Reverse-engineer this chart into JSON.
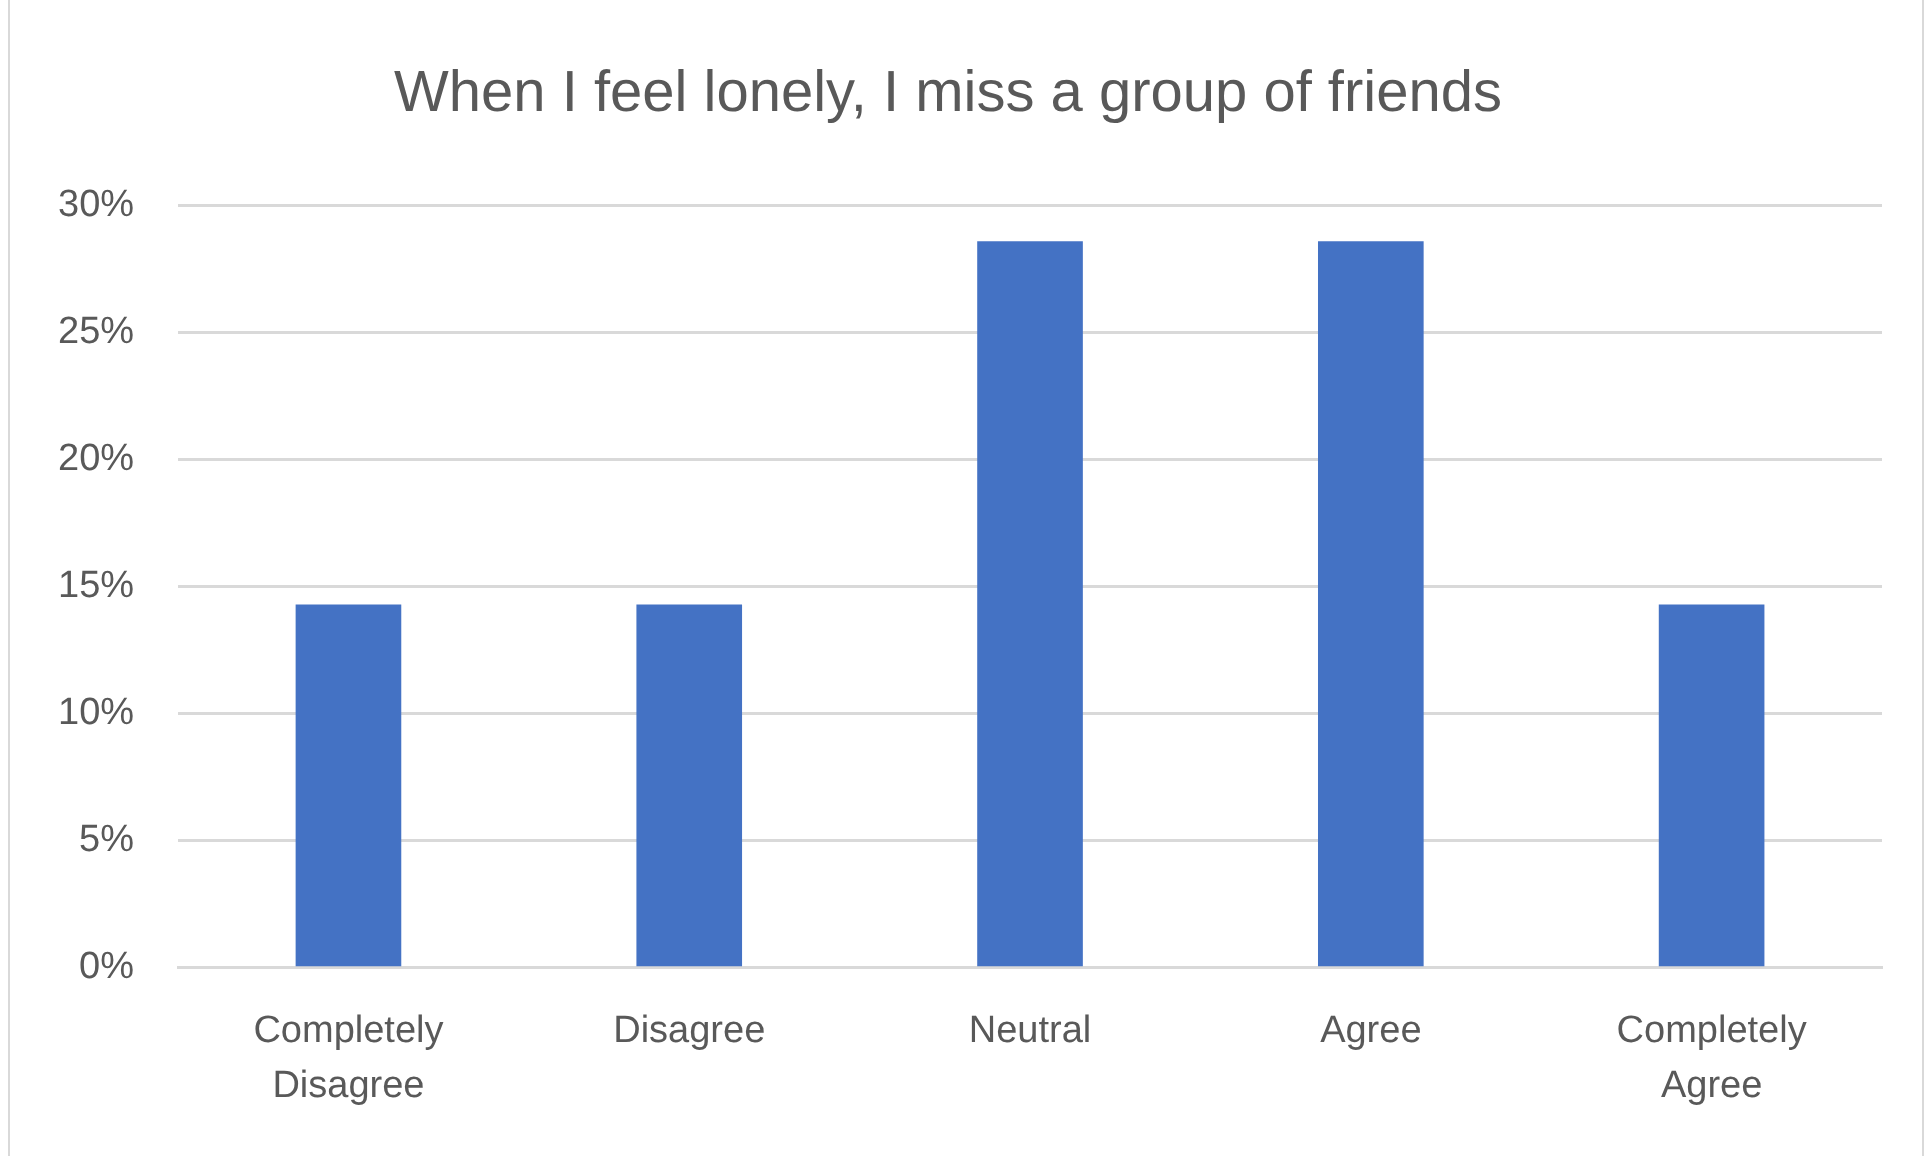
{
  "chart_data": {
    "type": "bar",
    "title": "When I feel lonely, I miss a group of friends",
    "categories": [
      "Completely Disagree",
      "Disagree",
      "Neutral",
      "Agree",
      "Completely Agree"
    ],
    "values": [
      14.3,
      14.3,
      28.6,
      28.6,
      14.3
    ],
    "color": "#4472c4",
    "ylim": [
      0,
      30
    ],
    "yticks": [
      {
        "value": 0,
        "label": "0%"
      },
      {
        "value": 5,
        "label": "5%"
      },
      {
        "value": 10,
        "label": "10%"
      },
      {
        "value": 15,
        "label": "15%"
      },
      {
        "value": 20,
        "label": "20%"
      },
      {
        "value": 25,
        "label": "25%"
      },
      {
        "value": 30,
        "label": "30%"
      }
    ],
    "grid": "y"
  }
}
